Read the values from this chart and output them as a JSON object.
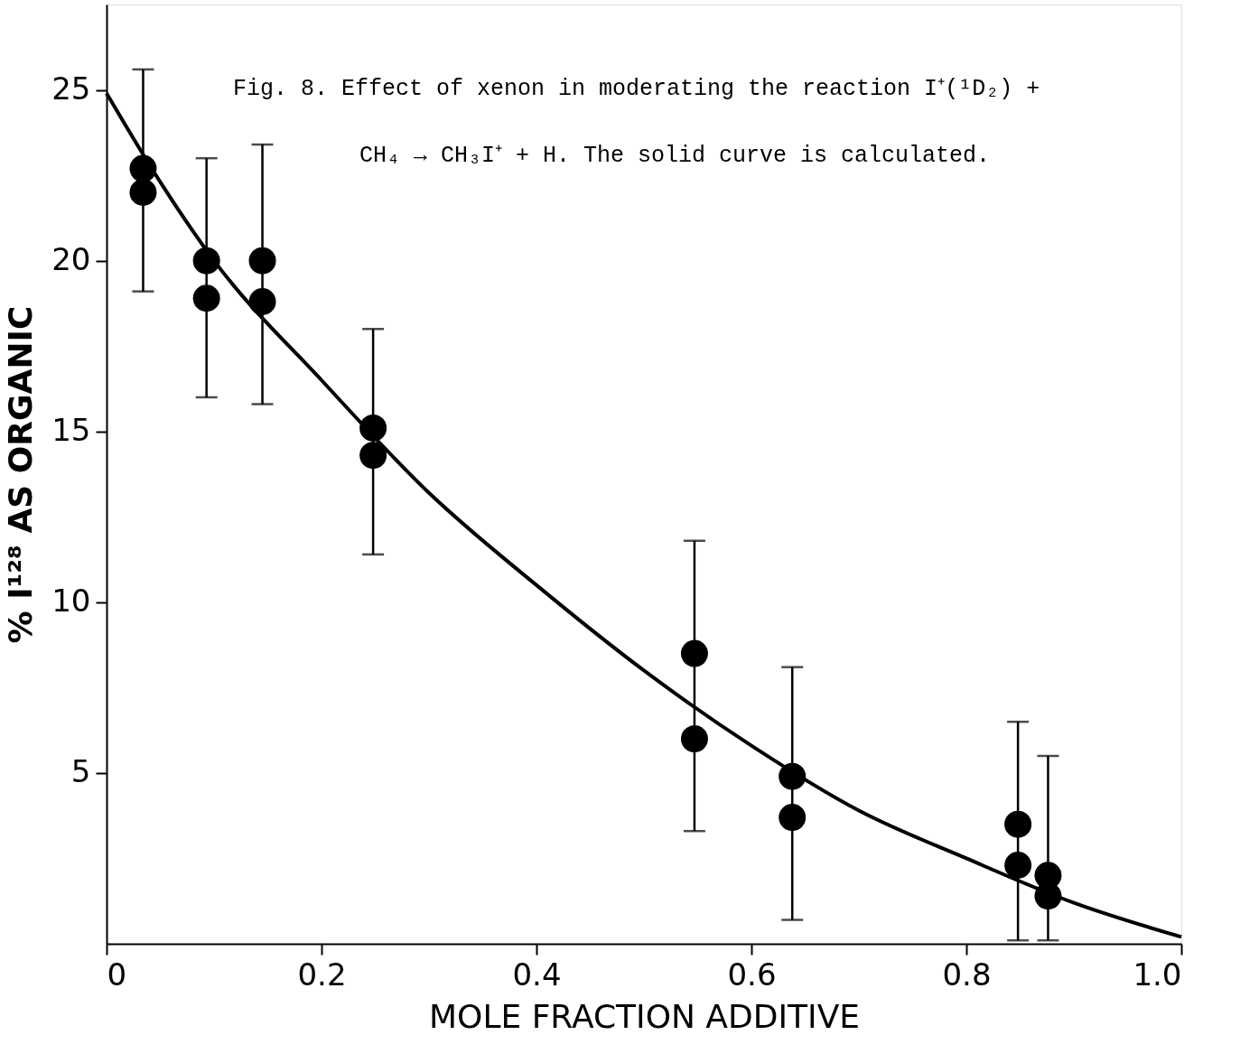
{
  "chart_data": {
    "type": "scatter",
    "xlabel": "MOLE FRACTION ADDITIVE",
    "ylabel": "% I¹²⁸ AS ORGANIC",
    "annotations": [
      "Fig. 8.  Effect of xenon in moderating the reaction I⁺(¹D₂) +",
      "CH₄ → CH₃I⁺ + H.  The solid curve is calculated."
    ],
    "xlim": [
      0,
      1
    ],
    "xticks": [
      0,
      0.2,
      0.4,
      0.6,
      0.8,
      {
        "value": 1,
        "label": "1.0"
      }
    ],
    "ylim": [
      0,
      27.5
    ],
    "yticks": [
      5,
      10,
      15,
      20,
      25
    ],
    "grid": false,
    "series": [
      {
        "color": "#000000",
        "marker": "circle",
        "x": [
          0.034,
          0.034,
          0.093,
          0.093,
          0.145,
          0.145,
          0.248,
          0.248,
          0.547,
          0.547,
          0.638,
          0.638,
          0.848,
          0.848,
          0.876,
          0.876
        ],
        "values": [
          22.7,
          22.0,
          20.0,
          18.9,
          20.0,
          18.8,
          15.1,
          14.3,
          8.5,
          6.0,
          4.9,
          3.7,
          3.5,
          2.3,
          2.0,
          1.4
        ],
        "errors": [
          [
            19.1,
            25.6
          ],
          null,
          [
            16.0,
            23.0
          ],
          null,
          [
            15.8,
            23.4
          ],
          null,
          [
            11.4,
            18.0
          ],
          null,
          [
            3.3,
            11.8
          ],
          null,
          [
            0.7,
            8.1
          ],
          null,
          [
            0.1,
            6.5
          ],
          null,
          [
            0.1,
            5.5
          ],
          null
        ]
      },
      {
        "type": "line",
        "color": "#000000",
        "line_style": "solid",
        "x": [
          0,
          0.05,
          0.1,
          0.2,
          0.3,
          0.4,
          0.5,
          0.6,
          0.7,
          0.8,
          0.9,
          1.0
        ],
        "values": [
          24.9,
          22.3,
          20.0,
          16.5,
          13.2,
          10.5,
          8.0,
          5.8,
          3.9,
          2.5,
          1.2,
          0.2
        ]
      }
    ]
  }
}
